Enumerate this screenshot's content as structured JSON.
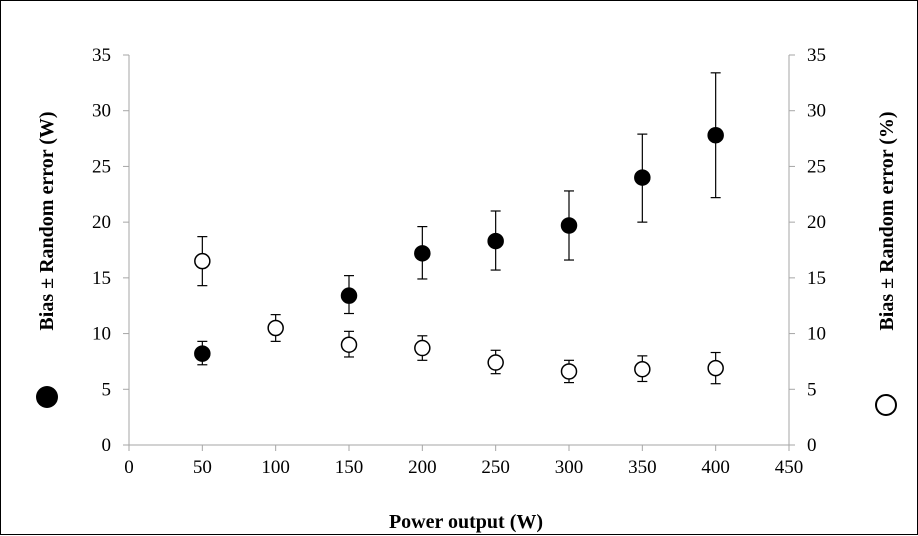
{
  "chart_data": {
    "type": "scatter",
    "title": "",
    "xlabel": "Power output (W)",
    "ylabel_left": "Bias ± Random error (W)",
    "ylabel_right": "Bias ± Random error (%)",
    "xlim": [
      0,
      450
    ],
    "x_ticks": [
      0,
      50,
      100,
      150,
      200,
      250,
      300,
      350,
      400,
      450
    ],
    "ylim_left": [
      0,
      35
    ],
    "ylim_right": [
      0,
      35
    ],
    "y_ticks": [
      0,
      5,
      10,
      15,
      20,
      25,
      30,
      35
    ],
    "grid": false,
    "series": [
      {
        "marker": "filled-circle",
        "axis": "left",
        "color": "#000000",
        "points": [
          {
            "x": 50,
            "y": 8.2,
            "err_low": 7.2,
            "err_high": 9.3
          },
          {
            "x": 150,
            "y": 13.4,
            "err_low": 11.8,
            "err_high": 15.2
          },
          {
            "x": 200,
            "y": 17.2,
            "err_low": 14.9,
            "err_high": 19.6
          },
          {
            "x": 250,
            "y": 18.3,
            "err_low": 15.7,
            "err_high": 21.0
          },
          {
            "x": 300,
            "y": 19.7,
            "err_low": 16.6,
            "err_high": 22.8
          },
          {
            "x": 350,
            "y": 24.0,
            "err_low": 20.0,
            "err_high": 27.9
          },
          {
            "x": 400,
            "y": 27.8,
            "err_low": 22.2,
            "err_high": 33.4
          }
        ]
      },
      {
        "marker": "open-circle",
        "axis": "right",
        "color": "#000000",
        "points": [
          {
            "x": 50,
            "y": 16.5,
            "err_low": 14.3,
            "err_high": 18.7
          },
          {
            "x": 100,
            "y": 10.5,
            "err_low": 9.3,
            "err_high": 11.7
          },
          {
            "x": 150,
            "y": 9.0,
            "err_low": 7.9,
            "err_high": 10.2
          },
          {
            "x": 200,
            "y": 8.7,
            "err_low": 7.6,
            "err_high": 9.8
          },
          {
            "x": 250,
            "y": 7.4,
            "err_low": 6.4,
            "err_high": 8.5
          },
          {
            "x": 300,
            "y": 6.6,
            "err_low": 5.6,
            "err_high": 7.6
          },
          {
            "x": 350,
            "y": 6.8,
            "err_low": 5.7,
            "err_high": 8.0
          },
          {
            "x": 400,
            "y": 6.9,
            "err_low": 5.5,
            "err_high": 8.3
          }
        ]
      }
    ]
  }
}
